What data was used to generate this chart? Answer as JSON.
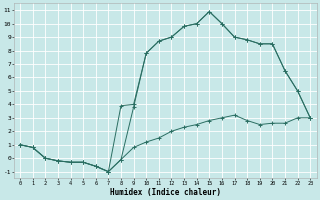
{
  "xlabel": "Humidex (Indice chaleur)",
  "bg_color": "#c8e8e8",
  "grid_color": "#e8f4f4",
  "line_color": "#2a6e62",
  "xlim": [
    -0.5,
    23.5
  ],
  "ylim": [
    -1.5,
    11.5
  ],
  "xticks": [
    0,
    1,
    2,
    3,
    4,
    5,
    6,
    7,
    8,
    9,
    10,
    11,
    12,
    13,
    14,
    15,
    16,
    17,
    18,
    19,
    20,
    21,
    22,
    23
  ],
  "yticks": [
    -1,
    0,
    1,
    2,
    3,
    4,
    5,
    6,
    7,
    8,
    9,
    10,
    11
  ],
  "series1_x": [
    0,
    1,
    2,
    3,
    4,
    5,
    6,
    7,
    8,
    9,
    10,
    11,
    12,
    13,
    14,
    15,
    16,
    17,
    18,
    19,
    20,
    21,
    22,
    23
  ],
  "series1_y": [
    1.0,
    0.8,
    0.0,
    -0.2,
    -0.3,
    -0.3,
    -0.6,
    -1.0,
    -0.1,
    0.8,
    1.2,
    1.5,
    2.0,
    2.3,
    2.5,
    2.8,
    3.0,
    3.2,
    2.8,
    2.5,
    2.6,
    2.6,
    3.0,
    3.0
  ],
  "series2_x": [
    0,
    1,
    2,
    3,
    4,
    5,
    6,
    7,
    8,
    9,
    10,
    11,
    12,
    13,
    14,
    15,
    16,
    17,
    18,
    19,
    20,
    21,
    22,
    23
  ],
  "series2_y": [
    1.0,
    0.8,
    0.0,
    -0.2,
    -0.3,
    -0.3,
    -0.6,
    -1.0,
    -0.1,
    3.8,
    7.8,
    8.7,
    9.0,
    9.8,
    10.0,
    10.9,
    10.0,
    9.0,
    8.8,
    8.5,
    8.5,
    6.5,
    5.0,
    3.0
  ],
  "series3_x": [
    0,
    1,
    2,
    3,
    4,
    5,
    6,
    7,
    8,
    9,
    10,
    11,
    12,
    13,
    14,
    15,
    16,
    17,
    18,
    19,
    20,
    21,
    22,
    23
  ],
  "series3_y": [
    1.0,
    0.8,
    0.0,
    -0.2,
    -0.3,
    -0.3,
    -0.6,
    -1.0,
    3.9,
    4.0,
    7.8,
    8.7,
    9.0,
    9.8,
    10.0,
    10.9,
    10.0,
    9.0,
    8.8,
    8.5,
    8.5,
    6.5,
    5.0,
    3.0
  ]
}
